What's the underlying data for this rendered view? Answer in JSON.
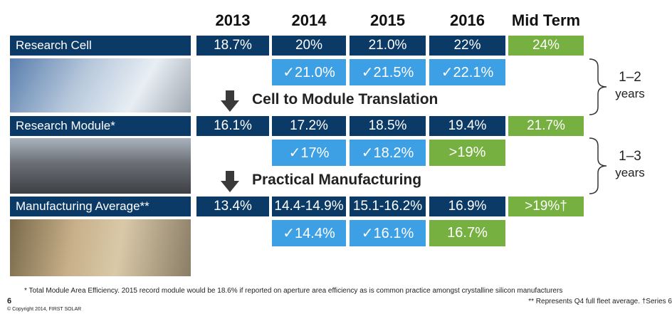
{
  "header": {
    "columns": [
      "2013",
      "2014",
      "2015",
      "2016",
      "Mid Term"
    ]
  },
  "colors": {
    "dark": "#0b3a67",
    "blue": "#3d9fe4",
    "green": "#76b041"
  },
  "sections": [
    {
      "label": "Research Cell",
      "cells": [
        {
          "text": "18.7%",
          "fill": "dark"
        },
        {
          "text": "20%",
          "fill": "dark"
        },
        {
          "text": "21.0%",
          "fill": "dark"
        },
        {
          "text": "22%",
          "fill": "dark"
        },
        {
          "text": "24%",
          "fill": "green"
        }
      ],
      "checks": [
        null,
        {
          "text": "✓21.0%",
          "fill": "blue"
        },
        {
          "text": "✓21.5%",
          "fill": "blue"
        },
        {
          "text": "✓22.1%",
          "fill": "blue"
        },
        null
      ],
      "step": "Cell to Module Translation"
    },
    {
      "label": "Research Module*",
      "cells": [
        {
          "text": "16.1%",
          "fill": "dark"
        },
        {
          "text": "17.2%",
          "fill": "dark"
        },
        {
          "text": "18.5%",
          "fill": "dark"
        },
        {
          "text": "19.4%",
          "fill": "dark"
        },
        {
          "text": "21.7%",
          "fill": "green"
        }
      ],
      "checks": [
        null,
        {
          "text": "✓17%",
          "fill": "blue"
        },
        {
          "text": "✓18.2%",
          "fill": "blue"
        },
        {
          "text": ">19%",
          "fill": "green"
        },
        null
      ],
      "step": "Practical Manufacturing"
    },
    {
      "label": "Manufacturing Average**",
      "cells": [
        {
          "text": "13.4%",
          "fill": "dark"
        },
        {
          "text": "14.4-14.9%",
          "fill": "dark"
        },
        {
          "text": "15.1-16.2%",
          "fill": "dark"
        },
        {
          "text": "16.9%",
          "fill": "dark"
        },
        {
          "text": ">19%†",
          "fill": "green"
        }
      ],
      "checks": [
        null,
        {
          "text": "✓14.4%",
          "fill": "blue"
        },
        {
          "text": "✓16.1%",
          "fill": "blue"
        },
        {
          "text": "16.7%",
          "fill": "green"
        },
        null
      ]
    }
  ],
  "brackets": [
    {
      "range": "1–2",
      "label": "years"
    },
    {
      "range": "1–3",
      "label": "years"
    }
  ],
  "footnotes": [
    "* Total Module Area Efficiency. 2015 record module would be 18.6% if reported on aperture area efficiency as is common practice amongst crystalline silicon manufacturers",
    "** Represents Q4 full fleet average. †Series 6"
  ],
  "page_number": "6",
  "copyright": "© Copyright 2014, FIRST SOLAR"
}
